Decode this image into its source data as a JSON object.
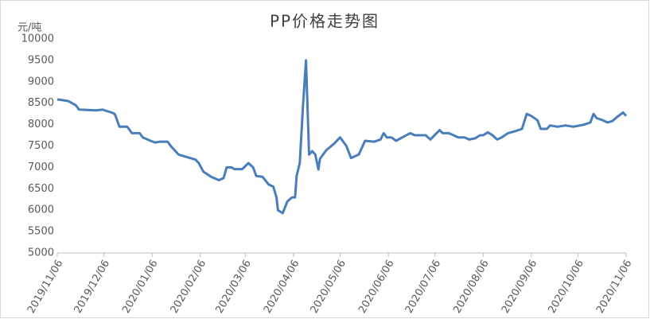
{
  "chart_data": {
    "type": "line",
    "title": "PP价格走势图",
    "y_unit": "元/吨",
    "x": [
      "2019/11/06",
      "2019/11/13",
      "2019/11/18",
      "2019/11/20",
      "2019/12/01",
      "2019/12/05",
      "2019/12/11",
      "2019/12/13",
      "2019/12/16",
      "2019/12/21",
      "2019/12/24",
      "2019/12/29",
      "2019/12/31",
      "2020/01/05",
      "2020/01/08",
      "2020/01/11",
      "2020/01/16",
      "2020/01/18",
      "2020/01/23",
      "2020/02/03",
      "2020/02/05",
      "2020/02/08",
      "2020/02/13",
      "2020/02/18",
      "2020/02/21",
      "2020/02/23",
      "2020/02/26",
      "2020/02/28",
      "2020/03/04",
      "2020/03/08",
      "2020/03/11",
      "2020/03/13",
      "2020/03/17",
      "2020/03/21",
      "2020/03/24",
      "2020/03/26",
      "2020/03/27",
      "2020/03/30",
      "2020/04/02",
      "2020/04/05",
      "2020/04/07",
      "2020/04/08",
      "2020/04/10",
      "2020/04/12",
      "2020/04/14",
      "2020/04/16",
      "2020/04/18",
      "2020/04/20",
      "2020/04/22",
      "2020/04/23",
      "2020/04/27",
      "2020/05/02",
      "2020/05/06",
      "2020/05/10",
      "2020/05/13",
      "2020/05/18",
      "2020/05/22",
      "2020/05/28",
      "2020/06/01",
      "2020/06/03",
      "2020/06/05",
      "2020/06/08",
      "2020/06/11",
      "2020/06/15",
      "2020/06/20",
      "2020/06/23",
      "2020/06/30",
      "2020/07/03",
      "2020/07/07",
      "2020/07/09",
      "2020/07/11",
      "2020/07/15",
      "2020/07/21",
      "2020/07/25",
      "2020/07/28",
      "2020/08/01",
      "2020/08/04",
      "2020/08/06",
      "2020/08/09",
      "2020/08/12",
      "2020/08/15",
      "2020/08/18",
      "2020/08/22",
      "2020/08/27",
      "2020/08/31",
      "2020/09/03",
      "2020/09/06",
      "2020/09/10",
      "2020/09/12",
      "2020/09/16",
      "2020/09/18",
      "2020/09/23",
      "2020/09/28",
      "2020/10/03",
      "2020/10/10",
      "2020/10/14",
      "2020/10/16",
      "2020/10/18",
      "2020/10/22",
      "2020/10/25",
      "2020/10/28",
      "2020/11/01",
      "2020/11/04",
      "2020/11/06"
    ],
    "series": [
      {
        "name": "PP",
        "color": "#4a7ebb",
        "values": [
          8590,
          8550,
          8450,
          8350,
          8330,
          8350,
          8280,
          8250,
          7950,
          7950,
          7800,
          7800,
          7700,
          7620,
          7580,
          7600,
          7600,
          7500,
          7300,
          7180,
          7100,
          6900,
          6780,
          6700,
          6750,
          7000,
          7000,
          6960,
          6960,
          7100,
          7000,
          6800,
          6780,
          6600,
          6550,
          6300,
          6000,
          5930,
          6200,
          6300,
          6300,
          6800,
          7100,
          8400,
          9500,
          7300,
          7380,
          7300,
          6950,
          7200,
          7400,
          7550,
          7700,
          7500,
          7220,
          7300,
          7620,
          7600,
          7650,
          7800,
          7700,
          7700,
          7620,
          7700,
          7800,
          7750,
          7750,
          7650,
          7800,
          7870,
          7800,
          7800,
          7700,
          7700,
          7650,
          7680,
          7750,
          7750,
          7820,
          7750,
          7650,
          7700,
          7800,
          7850,
          7900,
          8250,
          8200,
          8100,
          7900,
          7900,
          7980,
          7950,
          7980,
          7950,
          8000,
          8050,
          8250,
          8150,
          8100,
          8050,
          8080,
          8200,
          8280,
          8200
        ]
      }
    ],
    "ylim": [
      5000,
      10000
    ],
    "yticks": [
      5000,
      5500,
      6000,
      6500,
      7000,
      7500,
      8000,
      8500,
      9000,
      9500,
      10000
    ],
    "xticks": [
      "2019/11/06",
      "2019/12/06",
      "2020/01/06",
      "2020/02/06",
      "2020/03/06",
      "2020/04/06",
      "2020/05/06",
      "2020/06/06",
      "2020/07/06",
      "2020/08/06",
      "2020/09/06",
      "2020/10/06",
      "2020/11/06"
    ],
    "grid": false
  }
}
